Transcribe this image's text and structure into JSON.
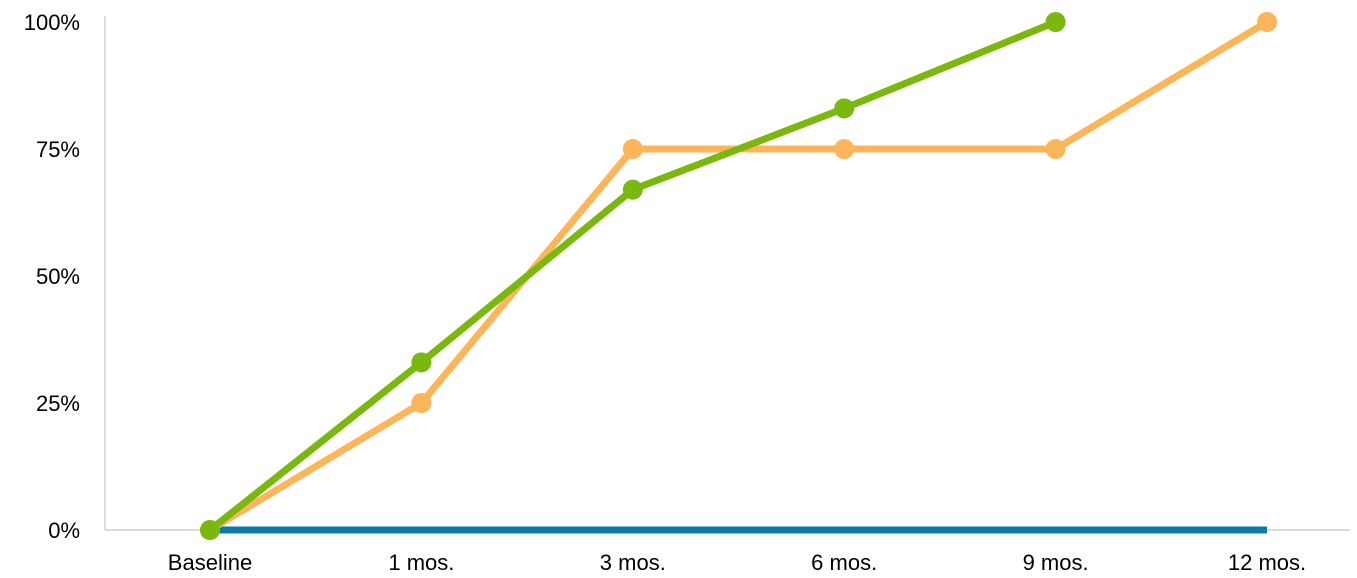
{
  "chart_data": {
    "type": "line",
    "title": "",
    "xlabel": "",
    "ylabel": "",
    "categories": [
      "Baseline",
      "1 mos.",
      "3 mos.",
      "6 mos.",
      "9 mos.",
      "12 mos."
    ],
    "y_ticks": [
      "0%",
      "25%",
      "50%",
      "75%",
      "100%"
    ],
    "y_tick_values": [
      0,
      25,
      50,
      75,
      100
    ],
    "ylim": [
      0,
      100
    ],
    "y_unit": "%",
    "grid": false,
    "legend": "none",
    "series": [
      {
        "color": "#0A7AA6",
        "values": [
          0,
          0,
          0,
          0,
          0,
          0
        ],
        "markers": false
      },
      {
        "color": "#FDB55A",
        "values": [
          0,
          25,
          75,
          75,
          75,
          100
        ],
        "markers": true
      },
      {
        "color": "#7AB80E",
        "values": [
          0,
          33,
          67,
          83,
          100,
          null
        ],
        "markers": true
      }
    ]
  }
}
